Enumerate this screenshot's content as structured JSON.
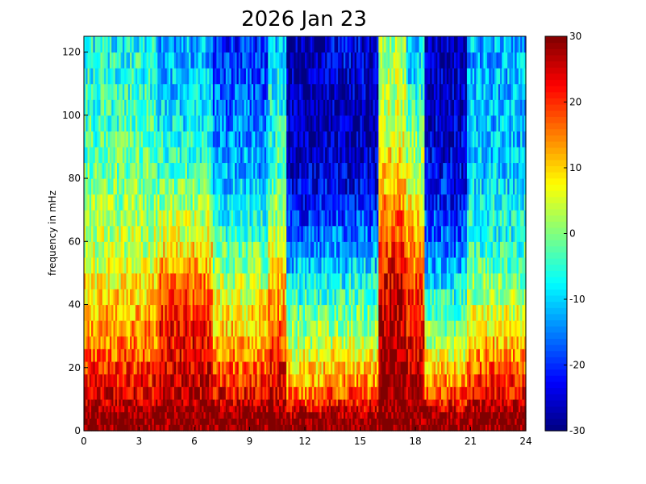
{
  "chart_data": {
    "type": "heatmap",
    "title": "2026 Jan 23",
    "xlabel": "",
    "ylabel": "frequency in mHz",
    "xlim": [
      0,
      24
    ],
    "ylim": [
      0,
      125
    ],
    "xticks": [
      0,
      3,
      6,
      9,
      12,
      15,
      18,
      21,
      24
    ],
    "yticks": [
      0,
      20,
      40,
      60,
      80,
      100,
      120
    ],
    "colormap": "jet",
    "colorbar": {
      "clim": [
        -30,
        30
      ],
      "ticks": [
        -30,
        -20,
        -10,
        0,
        10,
        20,
        30
      ],
      "placement": "right"
    },
    "grid": false,
    "time_step_hours": 0.1,
    "freq_bins_mHz": [
      0,
      2,
      4,
      6,
      8,
      10,
      14,
      18,
      22,
      26,
      30,
      35,
      40,
      45,
      50,
      55,
      60,
      65,
      70,
      75,
      80,
      85,
      90,
      95,
      100,
      105,
      110,
      115,
      120,
      125
    ],
    "hour_segments": [
      {
        "hours": [
          0,
          4
        ],
        "base_dB": [
          30,
          30,
          30,
          28,
          26,
          24,
          22,
          20,
          17,
          15,
          14,
          12,
          10,
          8,
          6,
          4,
          3,
          2,
          1,
          0,
          -1,
          -2,
          -3,
          -4,
          -5,
          -5,
          -6,
          -6,
          -7
        ]
      },
      {
        "hours": [
          4,
          7
        ],
        "base_dB": [
          30,
          30,
          30,
          30,
          28,
          27,
          26,
          25,
          24,
          23,
          22,
          20,
          18,
          15,
          12,
          9,
          6,
          3,
          1,
          -1,
          -3,
          -5,
          -6,
          -8,
          -9,
          -10,
          -11,
          -12,
          -12
        ]
      },
      {
        "hours": [
          7,
          10
        ],
        "base_dB": [
          30,
          30,
          30,
          28,
          26,
          23,
          20,
          17,
          14,
          12,
          10,
          8,
          6,
          3,
          0,
          -2,
          -4,
          -6,
          -8,
          -10,
          -12,
          -13,
          -14,
          -15,
          -16,
          -17,
          -18,
          -19,
          -20
        ]
      },
      {
        "hours": [
          10,
          11
        ],
        "base_dB": [
          30,
          30,
          30,
          29,
          28,
          26,
          24,
          22,
          20,
          18,
          16,
          14,
          12,
          10,
          8,
          6,
          4,
          2,
          0,
          -2,
          -3,
          -4,
          -5,
          -6,
          -7,
          -8,
          -9,
          -10,
          -10
        ]
      },
      {
        "hours": [
          11,
          13
        ],
        "base_dB": [
          30,
          30,
          28,
          24,
          20,
          16,
          12,
          9,
          6,
          3,
          1,
          -2,
          -5,
          -8,
          -11,
          -14,
          -17,
          -20,
          -22,
          -24,
          -25,
          -26,
          -27,
          -27,
          -28,
          -28,
          -28,
          -28,
          -28
        ]
      },
      {
        "hours": [
          13,
          16
        ],
        "base_dB": [
          30,
          30,
          28,
          25,
          22,
          18,
          14,
          10,
          7,
          4,
          2,
          -1,
          -4,
          -7,
          -10,
          -13,
          -16,
          -19,
          -21,
          -23,
          -25,
          -26,
          -27,
          -27,
          -27,
          -26,
          -25,
          -24,
          -24
        ]
      },
      {
        "hours": [
          16,
          17.5
        ],
        "base_dB": [
          30,
          30,
          30,
          30,
          30,
          30,
          30,
          30,
          29,
          28,
          27,
          26,
          25,
          24,
          22,
          20,
          18,
          16,
          14,
          12,
          10,
          8,
          6,
          5,
          4,
          3,
          3,
          2,
          2
        ]
      },
      {
        "hours": [
          17.5,
          18.5
        ],
        "base_dB": [
          30,
          30,
          30,
          30,
          29,
          28,
          27,
          26,
          25,
          24,
          23,
          22,
          20,
          18,
          16,
          14,
          12,
          10,
          8,
          6,
          4,
          2,
          0,
          -2,
          -4,
          -6,
          -8,
          -9,
          -10
        ]
      },
      {
        "hours": [
          18.5,
          20.8
        ],
        "base_dB": [
          30,
          30,
          28,
          25,
          22,
          18,
          14,
          10,
          6,
          3,
          0,
          -3,
          -6,
          -9,
          -12,
          -15,
          -17,
          -19,
          -21,
          -22,
          -23,
          -24,
          -25,
          -25,
          -26,
          -26,
          -26,
          -27,
          -27
        ]
      },
      {
        "hours": [
          20.8,
          24
        ],
        "base_dB": [
          30,
          30,
          30,
          28,
          26,
          23,
          20,
          17,
          14,
          11,
          8,
          5,
          2,
          0,
          -2,
          -4,
          -6,
          -7,
          -8,
          -9,
          -10,
          -10,
          -11,
          -11,
          -12,
          -12,
          -12,
          -12,
          -12
        ]
      }
    ]
  }
}
